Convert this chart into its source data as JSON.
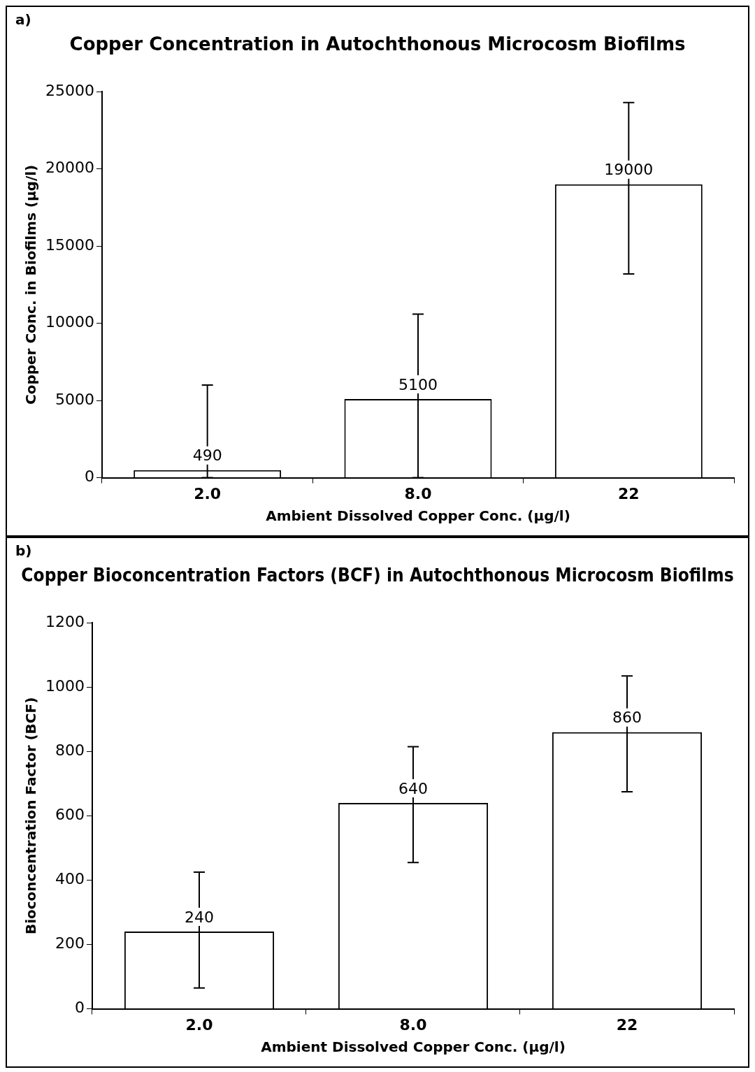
{
  "chart_data": [
    {
      "type": "bar",
      "title": "Copper Concentration in Autochthonous Microcosm Biofilms",
      "xlabel": "Ambient Dissolved Copper Conc. (µg/l)",
      "ylabel": "Copper Conc. in Biofilms (µg/l)",
      "annotations": [
        "a)"
      ],
      "categories": [
        "2.0",
        "8.0",
        "22"
      ],
      "values": [
        490,
        5100,
        19000
      ],
      "errors": [
        [
          0,
          6000
        ],
        [
          0,
          10600
        ],
        [
          13200,
          24300
        ]
      ],
      "color": "#ffffff",
      "data_labels": true,
      "ylim": [
        0,
        25000
      ],
      "yticks": [
        0,
        5000,
        10000,
        15000,
        20000,
        25000
      ],
      "grid": false,
      "legend": false
    },
    {
      "type": "bar",
      "title": "Copper Bioconcentration Factors (BCF) in Autochthonous Microcosm Biofilms",
      "xlabel": "Ambient Dissolved Copper Conc. (µg/l)",
      "ylabel": "Bioconcentration Factor (BCF)",
      "annotations": [
        "b)"
      ],
      "categories": [
        "2.0",
        "8.0",
        "22"
      ],
      "values": [
        240,
        640,
        860
      ],
      "errors": [
        [
          65,
          425
        ],
        [
          455,
          815
        ],
        [
          675,
          1035
        ]
      ],
      "color": "#ffffff",
      "data_labels": true,
      "ylim": [
        0,
        1200
      ],
      "yticks": [
        0,
        200,
        400,
        600,
        800,
        1000,
        1200
      ],
      "grid": false,
      "legend": false
    }
  ]
}
